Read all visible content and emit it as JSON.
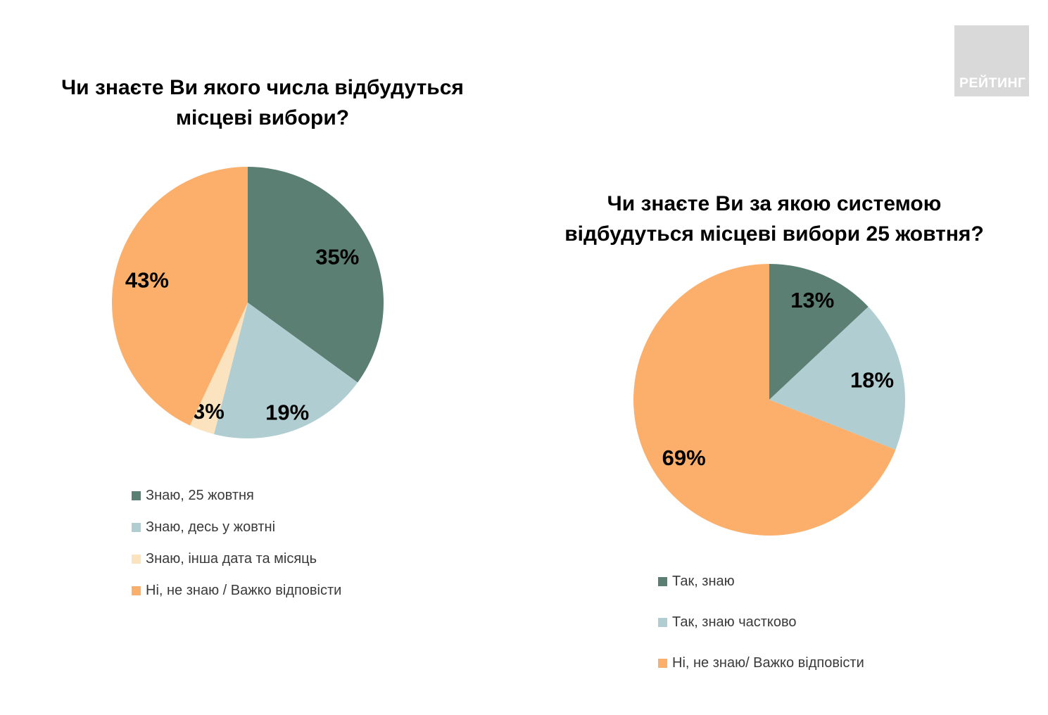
{
  "logo": {
    "text": "РЕЙТИНГ",
    "bg_color": "#d9d9d9",
    "text_color": "#ffffff"
  },
  "chart_data": [
    {
      "type": "pie",
      "title": "Чи знаєте Ви якого числа відбудуться місцеві вибори?",
      "title_lines": [
        "Чи знаєте Ви якого числа відбудуться",
        "місцеві вибори?"
      ],
      "start_angle_deg": 0,
      "direction": "clockwise",
      "legend_position": "bottom-left",
      "slices": [
        {
          "label": "Знаю, 25 жовтня",
          "value": 35,
          "pct_label": "35%",
          "color": "#5b7f73",
          "label_r": 0.74
        },
        {
          "label": "Знаю, десь у жовтні",
          "value": 19,
          "pct_label": "19%",
          "color": "#b0cdd1",
          "label_r": 0.86
        },
        {
          "label": "Знаю, інша дата та місяць",
          "value": 3,
          "pct_label": "3%",
          "color": "#fbe3c0",
          "label_r": 0.85
        },
        {
          "label": "Ні, не знаю / Важко відповісти",
          "value": 43,
          "pct_label": "43%",
          "color": "#fbaf6b",
          "label_r": 0.76
        }
      ]
    },
    {
      "type": "pie",
      "title": "Чи знаєте Ви за якою системою відбудуться місцеві вибори 25 жовтня?",
      "title_lines": [
        "Чи знаєте Ви за якою системою",
        "відбудуться місцеві вибори 25 жовтня?"
      ],
      "start_angle_deg": 0,
      "direction": "clockwise",
      "legend_position": "bottom-left",
      "slices": [
        {
          "label": "Так, знаю",
          "value": 13,
          "pct_label": "13%",
          "color": "#5b7f73",
          "label_r": 0.8
        },
        {
          "label": "Так, знаю частково",
          "value": 18,
          "pct_label": "18%",
          "color": "#b0cdd1",
          "label_r": 0.77
        },
        {
          "label": "Ні, не знаю/ Важко відповісти",
          "value": 69,
          "pct_label": "69%",
          "color": "#fbaf6b",
          "label_r": 0.76
        }
      ]
    }
  ]
}
